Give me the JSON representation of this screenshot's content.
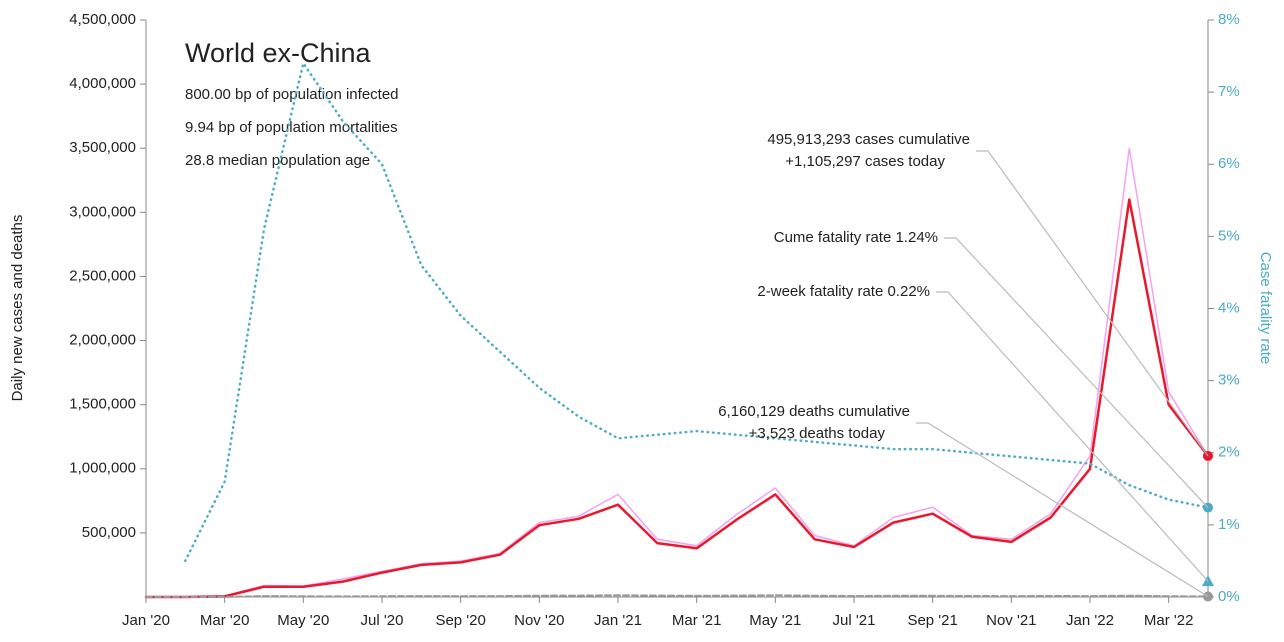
{
  "chart_data": {
    "type": "line",
    "title": "World ex-China",
    "subtitle_lines": [
      "800.00 bp of population infected",
      "9.94 bp of population mortalities",
      "28.8 median population age"
    ],
    "y_label": "Daily new cases and deaths",
    "y2_label": "Case fatality rate",
    "x": [
      "2020-01",
      "2020-02",
      "2020-03",
      "2020-04",
      "2020-05",
      "2020-06",
      "2020-07",
      "2020-08",
      "2020-09",
      "2020-10",
      "2020-11",
      "2020-12",
      "2021-01",
      "2021-02",
      "2021-03",
      "2021-04",
      "2021-05",
      "2021-06",
      "2021-07",
      "2021-08",
      "2021-09",
      "2021-10",
      "2021-11",
      "2021-12",
      "2022-01",
      "2022-02",
      "2022-03",
      "2022-04"
    ],
    "xlim": [
      "2020-01",
      "2022-04"
    ],
    "xticks": [
      {
        "value": "2020-01",
        "label": "Jan '20"
      },
      {
        "value": "2020-03",
        "label": "Mar '20"
      },
      {
        "value": "2020-05",
        "label": "May '20"
      },
      {
        "value": "2020-07",
        "label": "Jul '20"
      },
      {
        "value": "2020-09",
        "label": "Sep '20"
      },
      {
        "value": "2020-11",
        "label": "Nov '20"
      },
      {
        "value": "2021-01",
        "label": "Jan '21"
      },
      {
        "value": "2021-03",
        "label": "Mar '21"
      },
      {
        "value": "2021-05",
        "label": "May '21"
      },
      {
        "value": "2021-07",
        "label": "Jul '21"
      },
      {
        "value": "2021-09",
        "label": "Sep '21"
      },
      {
        "value": "2021-11",
        "label": "Nov '21"
      },
      {
        "value": "2022-01",
        "label": "Jan '22"
      },
      {
        "value": "2022-03",
        "label": "Mar '22"
      }
    ],
    "ylim": [
      0,
      4500000
    ],
    "yticks": [
      {
        "value": 500000,
        "label": "500,000"
      },
      {
        "value": 1000000,
        "label": "1,000,000"
      },
      {
        "value": 1500000,
        "label": "1,500,000"
      },
      {
        "value": 2000000,
        "label": "2,000,000"
      },
      {
        "value": 2500000,
        "label": "2,500,000"
      },
      {
        "value": 3000000,
        "label": "3,000,000"
      },
      {
        "value": 3500000,
        "label": "3,500,000"
      },
      {
        "value": 4000000,
        "label": "4,000,000"
      },
      {
        "value": 4500000,
        "label": "4,500,000"
      }
    ],
    "y2lim": [
      0,
      8
    ],
    "y2ticks": [
      {
        "value": 0,
        "label": "0%"
      },
      {
        "value": 1,
        "label": "1%"
      },
      {
        "value": 2,
        "label": "2%"
      },
      {
        "value": 3,
        "label": "3%"
      },
      {
        "value": 4,
        "label": "4%"
      },
      {
        "value": 5,
        "label": "5%"
      },
      {
        "value": 6,
        "label": "6%"
      },
      {
        "value": 7,
        "label": "7%"
      },
      {
        "value": 8,
        "label": "8%"
      }
    ],
    "series": [
      {
        "color": "#f7a0f0",
        "width": 1.5,
        "style": "solid",
        "values": [
          0,
          0,
          8000,
          90000,
          85000,
          140000,
          200000,
          260000,
          280000,
          340000,
          580000,
          630000,
          800000,
          450000,
          400000,
          640000,
          850000,
          480000,
          400000,
          620000,
          700000,
          480000,
          450000,
          650000,
          1100000,
          3500000,
          1600000,
          1100000
        ]
      },
      {
        "color": "#e8192c",
        "width": 2.5,
        "style": "solid",
        "values": [
          0,
          0,
          5000,
          80000,
          80000,
          120000,
          190000,
          250000,
          270000,
          330000,
          560000,
          610000,
          720000,
          420000,
          380000,
          600000,
          800000,
          450000,
          390000,
          580000,
          650000,
          470000,
          430000,
          620000,
          1000000,
          3100000,
          1500000,
          1100000
        ]
      },
      {
        "color": "#999999",
        "width": 2,
        "style": "dashed",
        "values": [
          0,
          0,
          1000,
          7000,
          5500,
          5000,
          6000,
          7000,
          6500,
          7000,
          10000,
          11000,
          13000,
          11000,
          9000,
          11000,
          13000,
          10000,
          8000,
          9000,
          9000,
          7500,
          7000,
          7500,
          7000,
          10000,
          6000,
          3523
        ]
      },
      {
        "color": "#4bacc6",
        "width": 2.5,
        "style": "dotted",
        "axis": "y2",
        "values": [
          null,
          0.5,
          1.6,
          5.1,
          7.4,
          6.6,
          6.0,
          4.6,
          3.9,
          3.4,
          2.9,
          2.5,
          2.2,
          2.25,
          2.3,
          2.25,
          2.2,
          2.15,
          2.1,
          2.05,
          2.05,
          2.0,
          1.95,
          1.9,
          1.85,
          1.55,
          1.35,
          1.24
        ]
      }
    ],
    "end_markers": [
      {
        "value": 0.22,
        "axis": "y2",
        "shape": "triangle",
        "color": "#4bacc6"
      }
    ],
    "annotations": [
      {
        "lines": [
          "495,913,293 cases cumulative",
          "+1,105,297 cases today"
        ]
      },
      {
        "lines": [
          "Cume fatality rate 1.24%"
        ]
      },
      {
        "lines": [
          "2-week fatality rate 0.22%"
        ]
      },
      {
        "lines": [
          "6,160,129 deaths cumulative",
          "+3,523 deaths today"
        ]
      }
    ]
  }
}
